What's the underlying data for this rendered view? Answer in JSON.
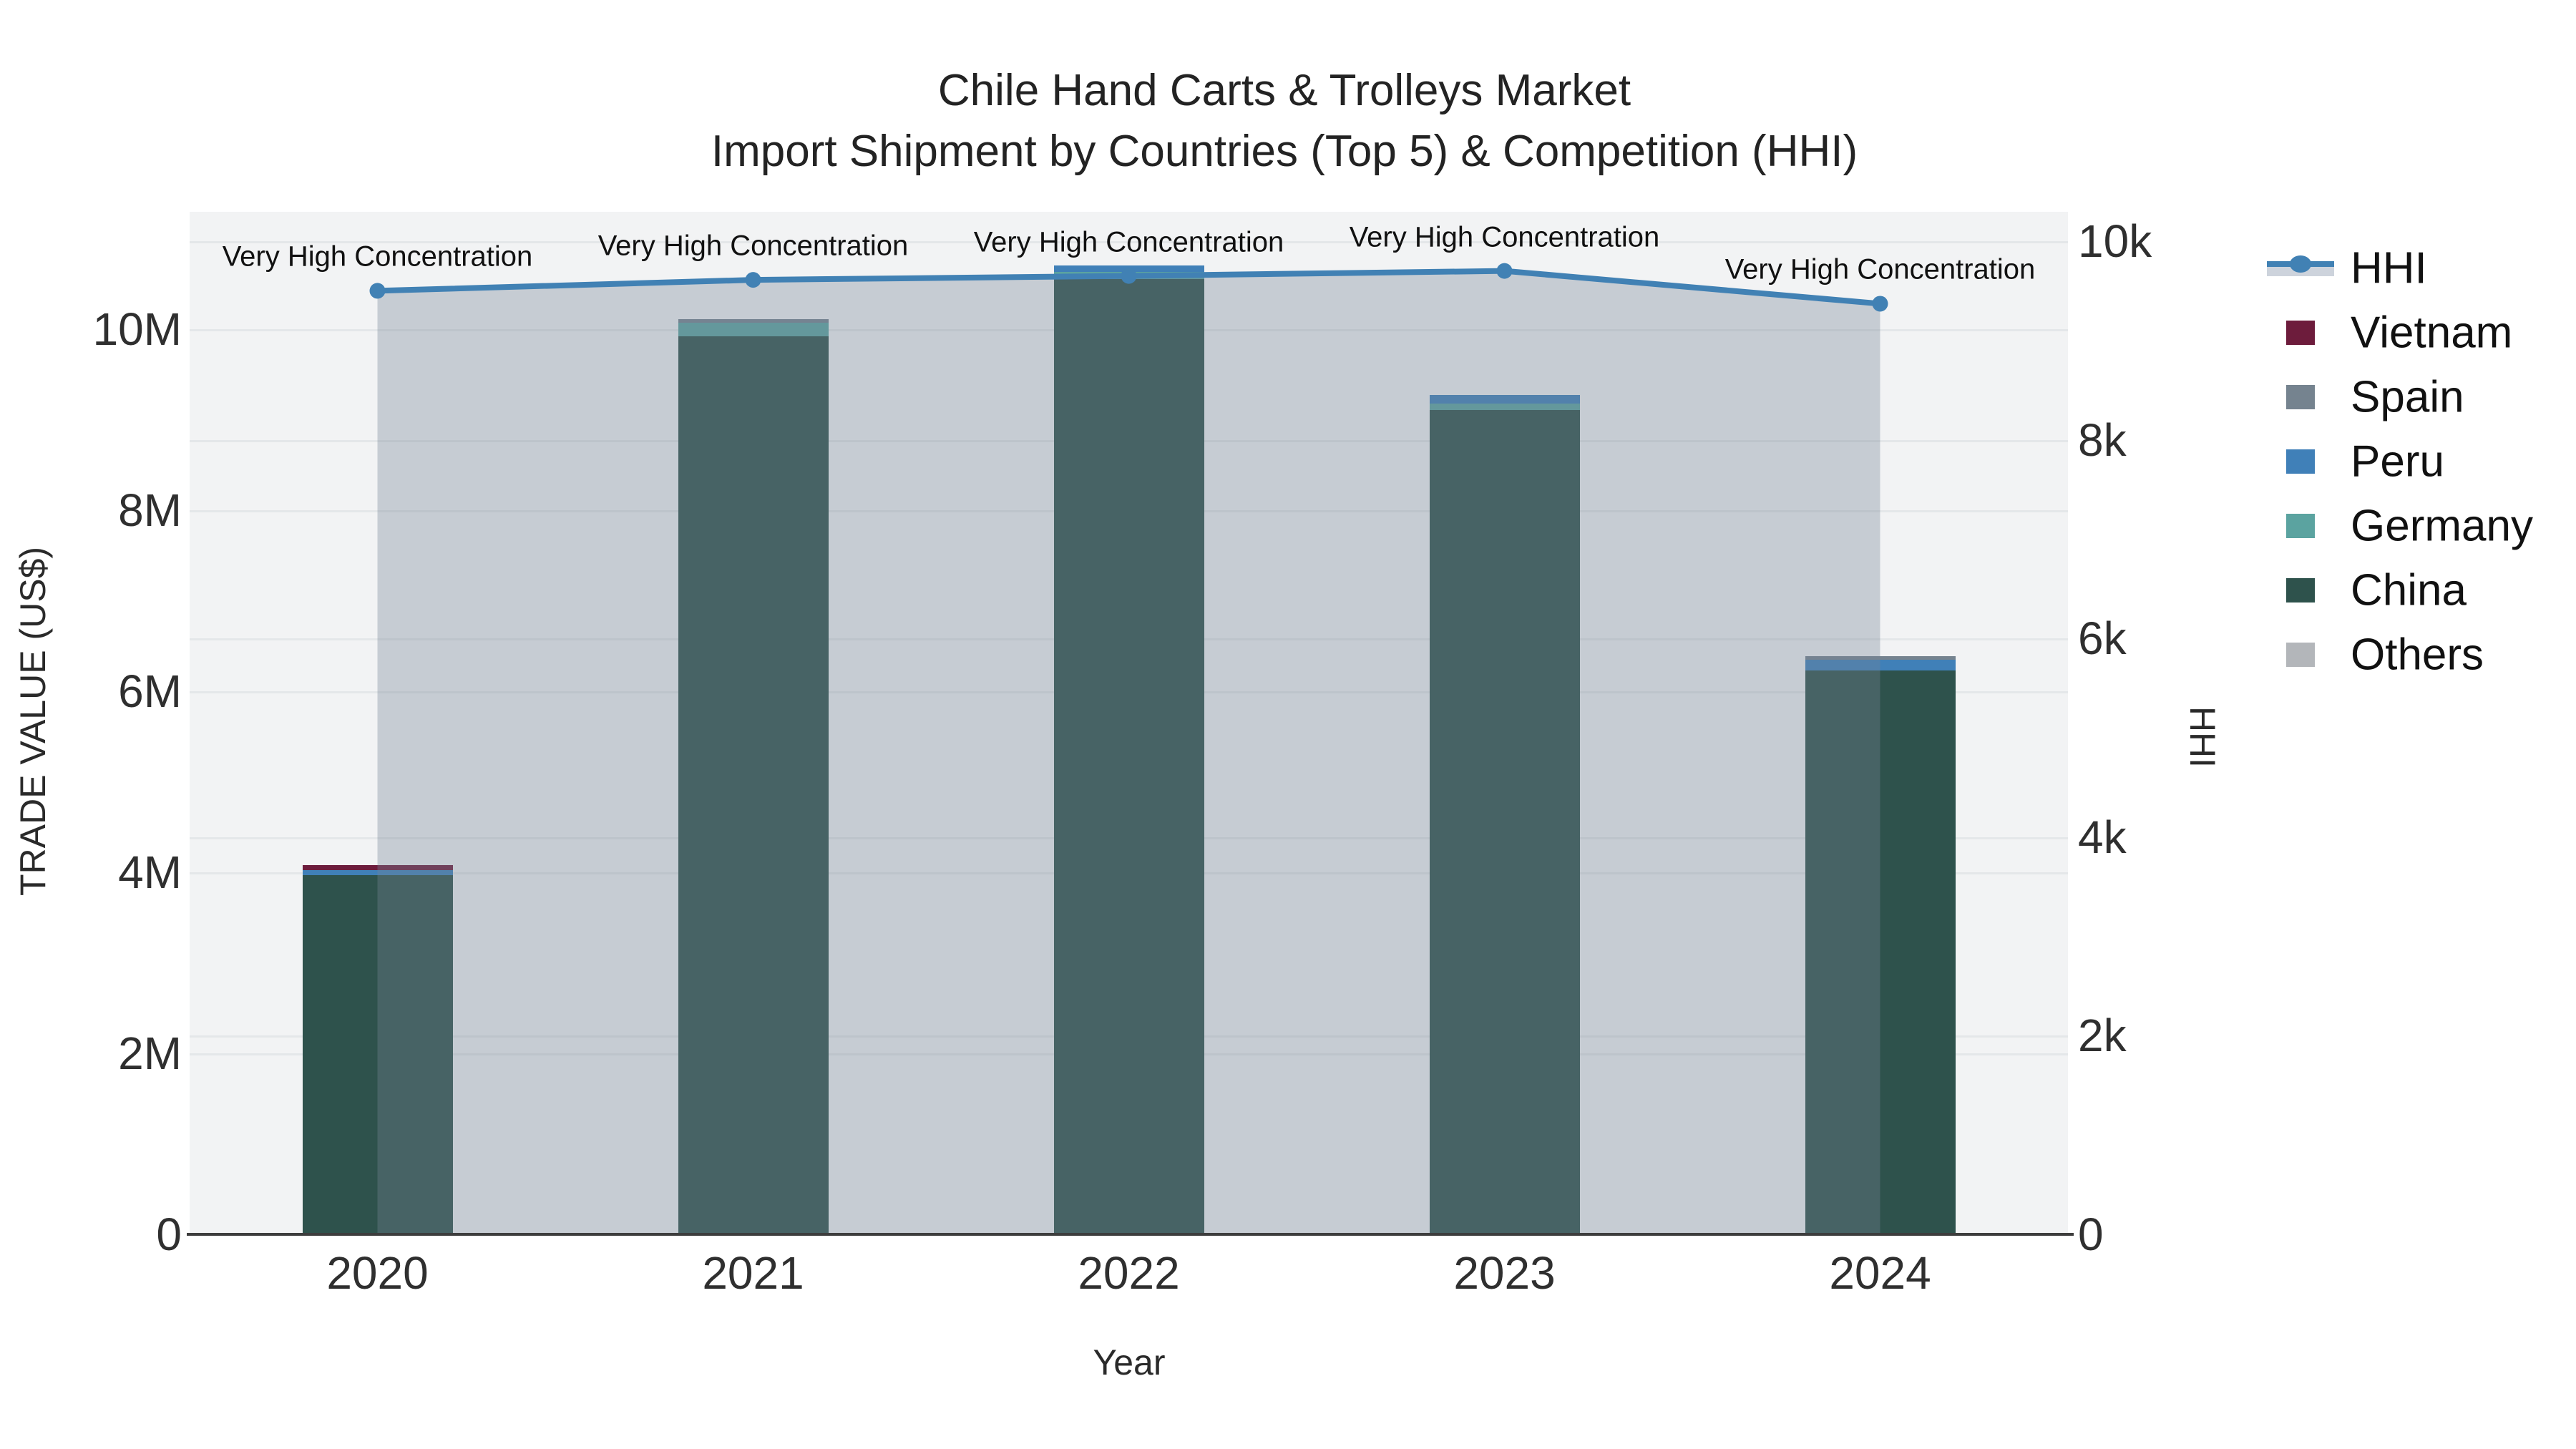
{
  "chart_data": {
    "type": "bar+line combo (stacked bars left axis, HHI line with area fill right axis)",
    "title": {
      "line1": "Chile Hand Carts & Trolleys Market",
      "line2": "Import Shipment by Countries (Top 5) & Competition (HHI)"
    },
    "xlabel": "Year",
    "ylabel_left": "TRADE VALUE (US$)",
    "ylabel_right": "HHI",
    "categories": [
      "2020",
      "2021",
      "2022",
      "2023",
      "2024"
    ],
    "bar_unit": "US$",
    "bar_series_bottom_to_top": [
      {
        "name": "China",
        "color": "#2e524c",
        "values": [
          3970000,
          9920000,
          10550000,
          9110000,
          6230000
        ]
      },
      {
        "name": "Germany",
        "color": "#5ba3a0",
        "values": [
          0,
          150000,
          80000,
          70000,
          0
        ]
      },
      {
        "name": "Peru",
        "color": "#4080b8",
        "values": [
          50000,
          0,
          70000,
          90000,
          120000
        ]
      },
      {
        "name": "Spain",
        "color": "#75838f",
        "values": [
          0,
          40000,
          0,
          0,
          40000
        ]
      },
      {
        "name": "Vietnam",
        "color": "#6d1c3c",
        "values": [
          60000,
          0,
          0,
          0,
          0
        ]
      },
      {
        "name": "Others",
        "color": "#b3b6ba",
        "values": [
          0,
          0,
          0,
          0,
          0
        ]
      }
    ],
    "bar_totals": [
      4080000,
      10110000,
      10700000,
      9270000,
      6390000
    ],
    "line_series": {
      "name": "HHI",
      "color": "#4181b4",
      "area_fill": "rgba(118,131,150,0.35)",
      "values": [
        9500,
        9610,
        9650,
        9700,
        9370
      ]
    },
    "annotations": {
      "text": "Very High Concentration",
      "per_point": [
        "Very High Concentration",
        "Very High Concentration",
        "Very High Concentration",
        "Very High Concentration",
        "Very High Concentration"
      ]
    },
    "y_left_ticks": [
      {
        "v": 0,
        "label": "0"
      },
      {
        "v": 2000000,
        "label": "2M"
      },
      {
        "v": 4000000,
        "label": "4M"
      },
      {
        "v": 6000000,
        "label": "6M"
      },
      {
        "v": 8000000,
        "label": "8M"
      },
      {
        "v": 10000000,
        "label": "10M"
      }
    ],
    "y_right_ticks": [
      {
        "v": 0,
        "label": "0"
      },
      {
        "v": 2000,
        "label": "2k"
      },
      {
        "v": 4000,
        "label": "4k"
      },
      {
        "v": 6000,
        "label": "6k"
      },
      {
        "v": 8000,
        "label": "8k"
      },
      {
        "v": 10000,
        "label": "10k"
      }
    ],
    "ylim_left": [
      0,
      11300000
    ],
    "ylim_right": [
      0,
      10300
    ],
    "grid": true,
    "legend_position": "right",
    "legend_items": [
      {
        "name": "HHI",
        "type": "line",
        "color": "#4181b4",
        "band_color": "#cdd3dc"
      },
      {
        "name": "Vietnam",
        "type": "square",
        "color": "#6d1c3c"
      },
      {
        "name": "Spain",
        "type": "square",
        "color": "#75838f"
      },
      {
        "name": "Peru",
        "type": "square",
        "color": "#4080b8"
      },
      {
        "name": "Germany",
        "type": "square",
        "color": "#5ba3a0"
      },
      {
        "name": "China",
        "type": "square",
        "color": "#2e524c"
      },
      {
        "name": "Others",
        "type": "square",
        "color": "#b3b6ba"
      }
    ],
    "colors": {
      "plot_background": "#f2f3f4",
      "figure_background": "#ffffff",
      "gridline": "#e4e7e9",
      "axis_line": "#3d3d3d",
      "annotation_text": "#111111"
    }
  }
}
